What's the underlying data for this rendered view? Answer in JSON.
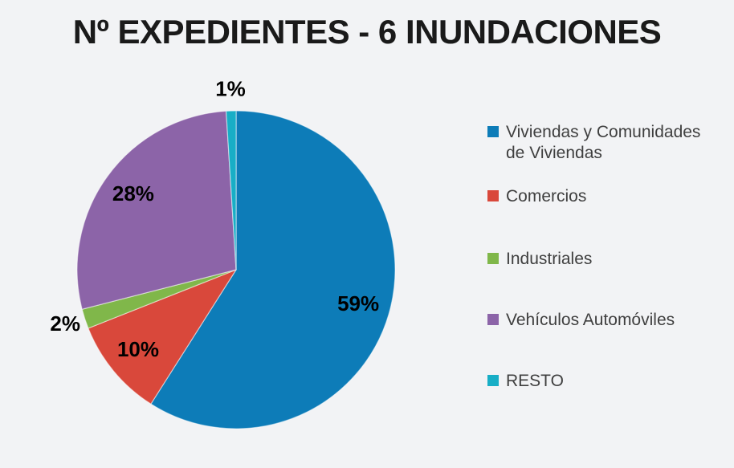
{
  "canvas": {
    "background": "#F2F3F5",
    "title_color": "#1A1A1A"
  },
  "chart_data": {
    "type": "pie",
    "title": "Nº EXPEDIENTES - 6 INUNDACIONES",
    "unit": "percent",
    "start_angle_deg": 0,
    "direction": "clockwise",
    "categories": [
      "Viviendas y Comunidades de Viviendas",
      "Comercios",
      "Industriales",
      "Vehículos Automóviles",
      "RESTO"
    ],
    "values": [
      59,
      10,
      2,
      28,
      1
    ],
    "data_labels": [
      "59%",
      "10%",
      "2%",
      "28%",
      "1%"
    ],
    "colors": [
      "#0D7CB8",
      "#D9483B",
      "#80B74A",
      "#8C64A8",
      "#18AEC6"
    ],
    "data_label_color": "#000000",
    "legend_position": "right",
    "legend_text_color": "#3F3F3F"
  }
}
